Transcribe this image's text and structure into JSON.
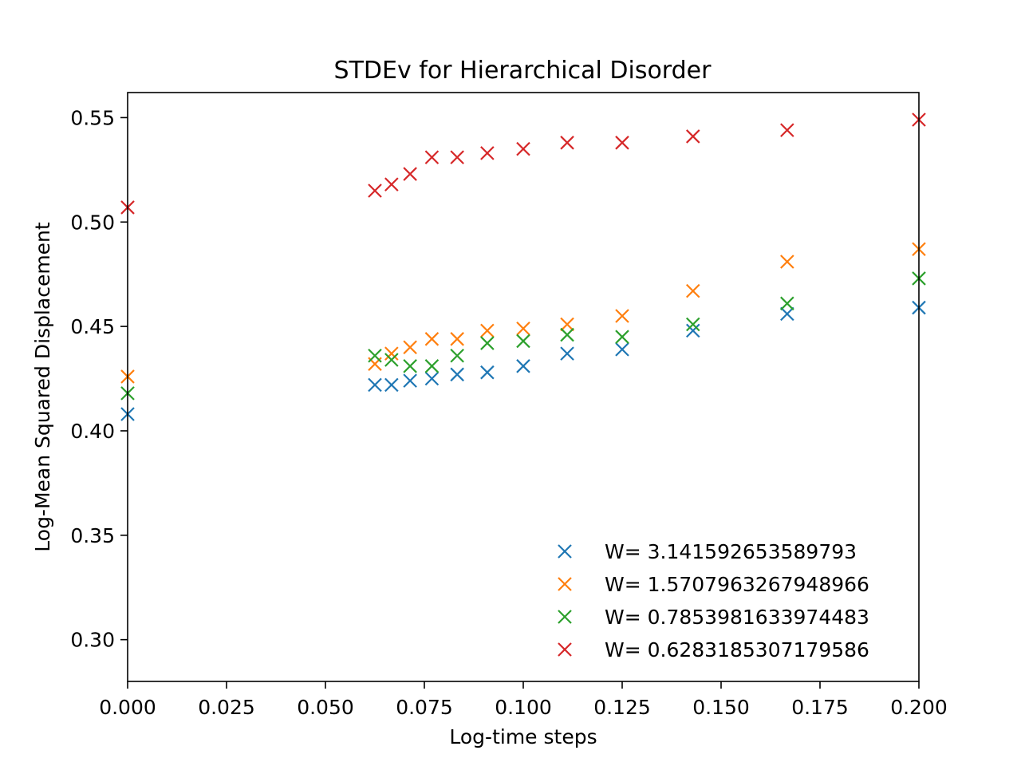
{
  "chart_data": {
    "type": "scatter",
    "title": "STDEv for Hierarchical Disorder",
    "xlabel": "Log-time steps",
    "ylabel": "Log-Mean Squared Displacement",
    "xlim": [
      0.0,
      0.2
    ],
    "ylim": [
      0.28,
      0.562
    ],
    "xticks": [
      "0.000",
      "0.025",
      "0.050",
      "0.075",
      "0.100",
      "0.125",
      "0.150",
      "0.175",
      "0.200"
    ],
    "xtick_values": [
      0.0,
      0.025,
      0.05,
      0.075,
      0.1,
      0.125,
      0.15,
      0.175,
      0.2
    ],
    "yticks": [
      "0.30",
      "0.35",
      "0.40",
      "0.45",
      "0.50",
      "0.55"
    ],
    "ytick_values": [
      0.3,
      0.35,
      0.4,
      0.45,
      0.5,
      0.55
    ],
    "grid": false,
    "legend_position": "bottom-right",
    "marker": "x",
    "x": [
      0.0,
      0.0625,
      0.0667,
      0.0714,
      0.0769,
      0.0833,
      0.0909,
      0.1,
      0.1111,
      0.125,
      0.1429,
      0.1667,
      0.2
    ],
    "series": [
      {
        "name": "W= 3.141592653589793",
        "color": "#1f77b4",
        "values": [
          0.408,
          0.422,
          0.422,
          0.424,
          0.425,
          0.427,
          0.428,
          0.431,
          0.437,
          0.439,
          0.448,
          0.456,
          0.459
        ]
      },
      {
        "name": "W= 1.5707963267948966",
        "color": "#ff7f0e",
        "values": [
          0.426,
          0.432,
          0.437,
          0.44,
          0.444,
          0.444,
          0.448,
          0.449,
          0.451,
          0.455,
          0.467,
          0.481,
          0.487
        ]
      },
      {
        "name": "W= 0.7853981633974483",
        "color": "#2ca02c",
        "values": [
          0.418,
          0.436,
          0.434,
          0.431,
          0.431,
          0.436,
          0.442,
          0.443,
          0.446,
          0.445,
          0.451,
          0.461,
          0.473
        ]
      },
      {
        "name": "W= 0.6283185307179586",
        "color": "#d62728",
        "values": [
          0.507,
          0.515,
          0.518,
          0.523,
          0.531,
          0.531,
          0.533,
          0.535,
          0.538,
          0.538,
          0.541,
          0.544,
          0.549
        ]
      }
    ]
  }
}
